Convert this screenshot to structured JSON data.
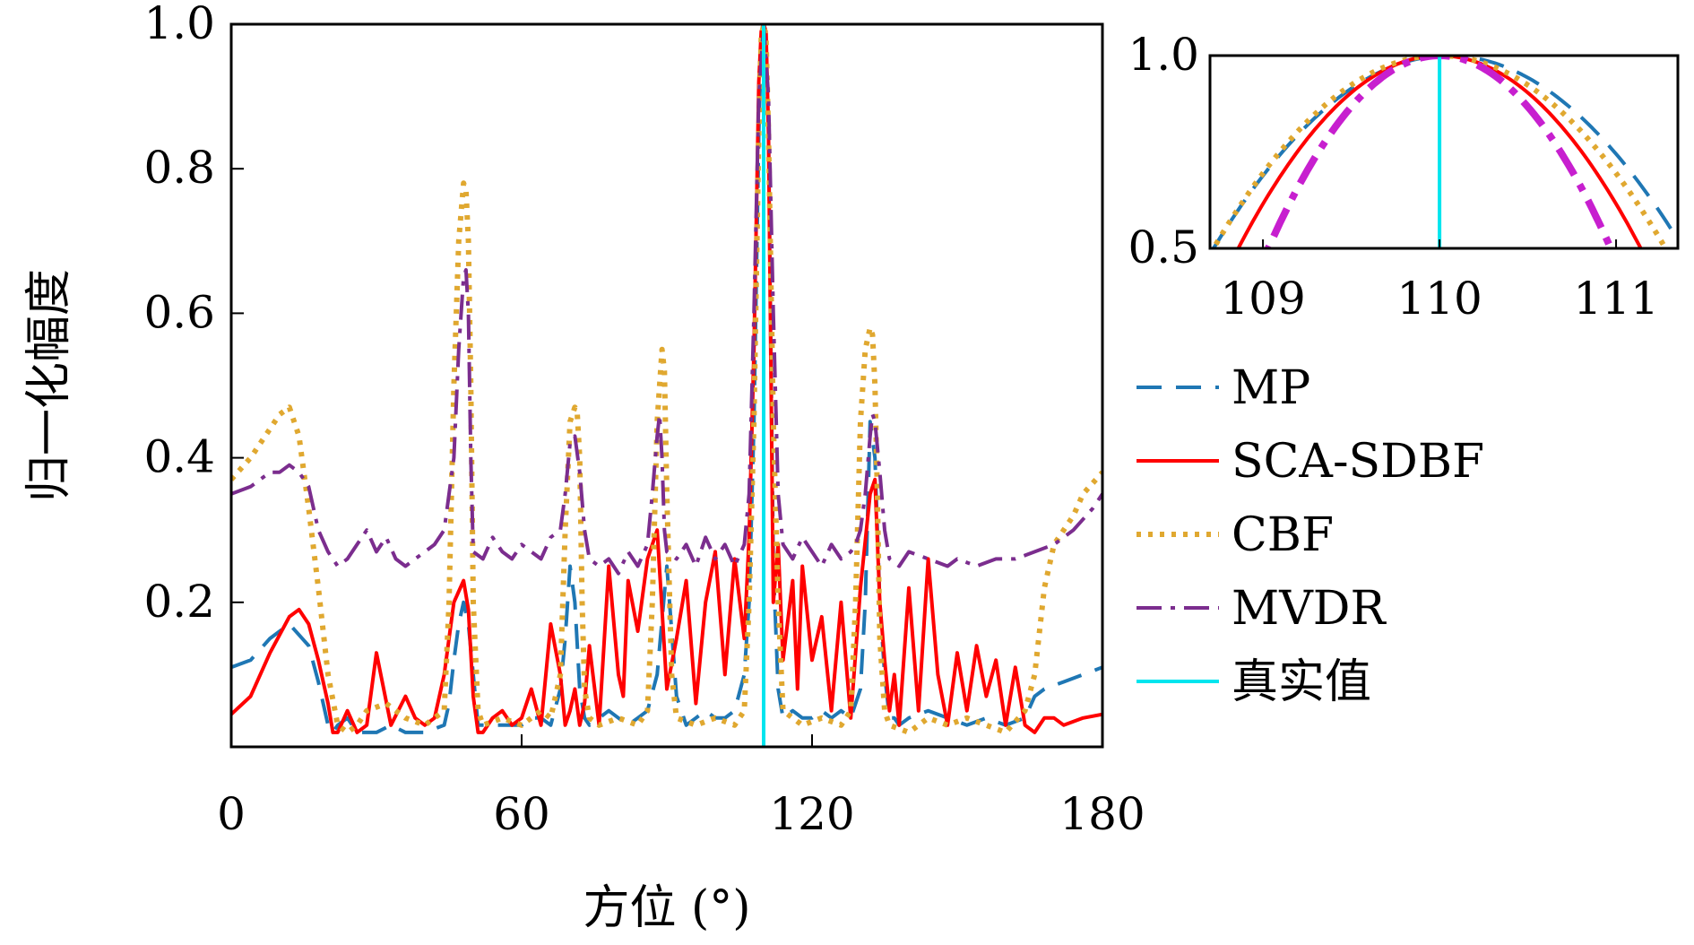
{
  "chart_data": [
    {
      "type": "line",
      "xlabel": "方位 (°)",
      "ylabel": "归一化幅度",
      "xlim": [
        0,
        180
      ],
      "ylim": [
        0,
        1
      ],
      "xticks": [
        "0",
        "60",
        "120",
        "180"
      ],
      "yticks": [
        "0.2",
        "0.4",
        "0.6",
        "0.8",
        "1.0"
      ],
      "true_value": 110,
      "series": [
        {
          "name": "MP",
          "color": "#1f77b4",
          "dash": "28,16",
          "x": [
            0,
            4,
            8,
            12,
            16,
            18,
            20,
            21,
            22,
            24,
            26,
            28,
            30,
            33,
            36,
            40,
            44,
            45,
            46,
            47,
            48,
            49,
            50,
            51,
            52,
            54,
            56,
            58,
            60,
            62,
            64,
            66,
            68,
            69,
            70,
            71,
            72,
            73,
            74,
            76,
            78,
            80,
            82,
            84,
            86,
            88,
            90,
            92,
            94,
            96,
            98,
            100,
            102,
            104,
            106,
            107,
            108,
            109,
            109.5,
            110,
            110.5,
            111,
            112,
            113,
            114,
            116,
            118,
            120,
            122,
            124,
            126,
            128,
            130,
            131,
            132,
            133,
            134,
            135,
            136,
            137,
            138,
            140,
            144,
            148,
            152,
            156,
            160,
            164,
            166,
            168,
            172,
            176,
            180
          ],
          "y": [
            0.11,
            0.12,
            0.15,
            0.17,
            0.14,
            0.09,
            0.03,
            0.02,
            0.03,
            0.04,
            0.02,
            0.02,
            0.02,
            0.03,
            0.02,
            0.02,
            0.03,
            0.06,
            0.12,
            0.17,
            0.2,
            0.17,
            0.1,
            0.03,
            0.03,
            0.03,
            0.03,
            0.03,
            0.03,
            0.04,
            0.04,
            0.03,
            0.08,
            0.15,
            0.25,
            0.2,
            0.08,
            0.04,
            0.03,
            0.04,
            0.05,
            0.04,
            0.03,
            0.04,
            0.05,
            0.1,
            0.25,
            0.07,
            0.03,
            0.04,
            0.05,
            0.04,
            0.04,
            0.05,
            0.1,
            0.2,
            0.45,
            0.85,
            0.97,
            1.0,
            0.97,
            0.85,
            0.25,
            0.08,
            0.04,
            0.05,
            0.04,
            0.04,
            0.05,
            0.04,
            0.05,
            0.04,
            0.08,
            0.2,
            0.45,
            0.4,
            0.2,
            0.1,
            0.04,
            0.04,
            0.03,
            0.04,
            0.05,
            0.04,
            0.03,
            0.04,
            0.03,
            0.04,
            0.07,
            0.08,
            0.09,
            0.1,
            0.11
          ]
        },
        {
          "name": "SCA-SDBF",
          "color": "#ff0000",
          "dash": "",
          "x": [
            0,
            4,
            8,
            12,
            14,
            16,
            18,
            20,
            21,
            22,
            24,
            26,
            28,
            30,
            33,
            36,
            38,
            40,
            42,
            44,
            46,
            48,
            49,
            50,
            51,
            52,
            54,
            56,
            58,
            60,
            62,
            64,
            66,
            68,
            69,
            70,
            71,
            72,
            73,
            74,
            76,
            78,
            80,
            81,
            82,
            84,
            86,
            88,
            90,
            92,
            94,
            96,
            98,
            100,
            102,
            104,
            106,
            107,
            108,
            109,
            109.5,
            110,
            110.5,
            111,
            112,
            113,
            114,
            116,
            117,
            118,
            120,
            122,
            124,
            126,
            128,
            130,
            132,
            133,
            134,
            135,
            136,
            137,
            138,
            140,
            142,
            144,
            146,
            148,
            150,
            152,
            154,
            156,
            158,
            160,
            162,
            164,
            166,
            168,
            170,
            172,
            176,
            180
          ],
          "y": [
            0.045,
            0.07,
            0.13,
            0.18,
            0.19,
            0.17,
            0.12,
            0.06,
            0.02,
            0.02,
            0.05,
            0.02,
            0.03,
            0.13,
            0.03,
            0.07,
            0.04,
            0.03,
            0.04,
            0.1,
            0.2,
            0.23,
            0.19,
            0.07,
            0.02,
            0.02,
            0.04,
            0.05,
            0.03,
            0.04,
            0.08,
            0.03,
            0.17,
            0.1,
            0.03,
            0.05,
            0.08,
            0.03,
            0.06,
            0.14,
            0.03,
            0.25,
            0.1,
            0.07,
            0.23,
            0.16,
            0.26,
            0.3,
            0.08,
            0.15,
            0.23,
            0.06,
            0.2,
            0.27,
            0.1,
            0.26,
            0.15,
            0.29,
            0.55,
            0.92,
            0.99,
            1.0,
            0.99,
            0.85,
            0.2,
            0.28,
            0.12,
            0.23,
            0.08,
            0.25,
            0.12,
            0.18,
            0.05,
            0.2,
            0.04,
            0.22,
            0.35,
            0.37,
            0.2,
            0.12,
            0.05,
            0.1,
            0.03,
            0.22,
            0.05,
            0.26,
            0.1,
            0.03,
            0.13,
            0.05,
            0.14,
            0.07,
            0.12,
            0.03,
            0.11,
            0.03,
            0.02,
            0.04,
            0.04,
            0.03,
            0.04,
            0.045
          ]
        },
        {
          "name": "CBF",
          "color": "#e0a830",
          "dash": "5,8",
          "x": [
            0,
            4,
            8,
            10,
            12,
            14,
            16,
            18,
            20,
            22,
            24,
            26,
            28,
            32,
            36,
            40,
            44,
            45,
            46,
            47,
            48,
            48.5,
            49,
            49.5,
            50,
            51,
            52,
            56,
            60,
            64,
            66,
            68,
            69,
            70,
            71,
            71.5,
            72,
            72.5,
            73,
            74,
            76,
            80,
            84,
            86,
            87,
            88,
            89,
            89.5,
            90,
            91,
            92,
            96,
            100,
            104,
            106,
            107,
            108,
            109,
            109.5,
            110,
            110.5,
            111,
            112,
            113,
            114,
            118,
            122,
            126,
            128,
            129,
            130,
            131,
            132,
            132.5,
            133,
            133.5,
            134,
            135,
            136,
            140,
            144,
            148,
            152,
            156,
            160,
            164,
            166,
            168,
            170,
            172,
            174,
            176,
            180
          ],
          "y": [
            0.37,
            0.4,
            0.44,
            0.46,
            0.47,
            0.43,
            0.33,
            0.22,
            0.1,
            0.03,
            0.02,
            0.03,
            0.05,
            0.06,
            0.04,
            0.03,
            0.05,
            0.2,
            0.5,
            0.7,
            0.78,
            0.77,
            0.7,
            0.5,
            0.2,
            0.05,
            0.03,
            0.04,
            0.03,
            0.05,
            0.04,
            0.1,
            0.3,
            0.45,
            0.47,
            0.46,
            0.4,
            0.2,
            0.08,
            0.04,
            0.03,
            0.04,
            0.03,
            0.05,
            0.2,
            0.45,
            0.55,
            0.52,
            0.35,
            0.1,
            0.04,
            0.03,
            0.04,
            0.03,
            0.05,
            0.2,
            0.45,
            0.85,
            0.98,
            1.0,
            0.98,
            0.85,
            0.45,
            0.2,
            0.05,
            0.03,
            0.04,
            0.03,
            0.05,
            0.2,
            0.45,
            0.55,
            0.58,
            0.57,
            0.5,
            0.35,
            0.15,
            0.05,
            0.03,
            0.02,
            0.04,
            0.03,
            0.04,
            0.03,
            0.02,
            0.05,
            0.1,
            0.22,
            0.28,
            0.3,
            0.32,
            0.35,
            0.38
          ]
        },
        {
          "name": "MVDR",
          "color": "#7b2d8e",
          "dash": "28,10,5,10",
          "x": [
            0,
            4,
            8,
            10,
            12,
            14,
            16,
            18,
            20,
            22,
            24,
            26,
            28,
            30,
            32,
            34,
            36,
            38,
            40,
            42,
            44,
            46,
            47,
            48,
            48.5,
            49,
            49.5,
            50,
            52,
            54,
            56,
            58,
            60,
            62,
            64,
            66,
            68,
            69,
            70,
            71,
            72,
            73,
            74,
            76,
            78,
            80,
            82,
            84,
            86,
            87,
            88,
            88.5,
            89,
            89.5,
            90,
            92,
            94,
            96,
            98,
            100,
            102,
            104,
            106,
            107,
            108,
            109,
            110,
            111,
            112,
            113,
            114,
            116,
            118,
            120,
            122,
            124,
            126,
            128,
            129,
            130,
            131,
            132,
            132.5,
            133,
            134,
            135,
            136,
            138,
            140,
            144,
            148,
            150,
            154,
            158,
            162,
            166,
            170,
            174,
            178,
            180
          ],
          "y": [
            0.35,
            0.36,
            0.38,
            0.38,
            0.39,
            0.38,
            0.36,
            0.3,
            0.27,
            0.25,
            0.26,
            0.28,
            0.3,
            0.27,
            0.29,
            0.26,
            0.25,
            0.26,
            0.27,
            0.28,
            0.3,
            0.4,
            0.55,
            0.65,
            0.66,
            0.6,
            0.4,
            0.27,
            0.26,
            0.29,
            0.27,
            0.26,
            0.28,
            0.27,
            0.26,
            0.29,
            0.3,
            0.35,
            0.42,
            0.43,
            0.38,
            0.3,
            0.26,
            0.25,
            0.26,
            0.24,
            0.27,
            0.25,
            0.28,
            0.35,
            0.43,
            0.46,
            0.4,
            0.3,
            0.27,
            0.26,
            0.28,
            0.25,
            0.29,
            0.26,
            0.28,
            0.25,
            0.28,
            0.35,
            0.6,
            0.9,
            1.0,
            0.9,
            0.6,
            0.35,
            0.28,
            0.26,
            0.29,
            0.27,
            0.25,
            0.28,
            0.26,
            0.27,
            0.28,
            0.3,
            0.35,
            0.43,
            0.46,
            0.45,
            0.38,
            0.3,
            0.26,
            0.25,
            0.27,
            0.26,
            0.25,
            0.26,
            0.25,
            0.26,
            0.26,
            0.27,
            0.28,
            0.3,
            0.33,
            0.35
          ]
        },
        {
          "name": "真实值",
          "color": "#00e5ee",
          "dash": "",
          "x": [
            110,
            110
          ],
          "y": [
            0,
            1.0
          ]
        }
      ],
      "legend": "right"
    },
    {
      "type": "line",
      "xlim": [
        108.7,
        111.35
      ],
      "ylim": [
        0.5,
        1.0
      ],
      "xticks": [
        "109",
        "110",
        "111"
      ],
      "yticks": [
        "0.5",
        "1.0"
      ],
      "series": [
        {
          "name": "MP",
          "color": "#1f77b4",
          "dash": "28,16",
          "peak": 110.05,
          "halfwidth": 1.33
        },
        {
          "name": "SCA-SDBF",
          "color": "#ff0000",
          "dash": "",
          "peak": 110.0,
          "halfwidth": 1.14
        },
        {
          "name": "CBF",
          "color": "#e0a830",
          "dash": "5,8",
          "peak": 110.0,
          "halfwidth": 1.28
        },
        {
          "name": "MVDR",
          "color": "#c71fcf",
          "dash": "34,12,8,12",
          "peak": 110.0,
          "halfwidth": 0.97
        },
        {
          "name": "真实值",
          "color": "#00e5ee",
          "dash": "",
          "x": [
            110,
            110
          ],
          "y": [
            0.5,
            1.0
          ]
        }
      ]
    }
  ]
}
